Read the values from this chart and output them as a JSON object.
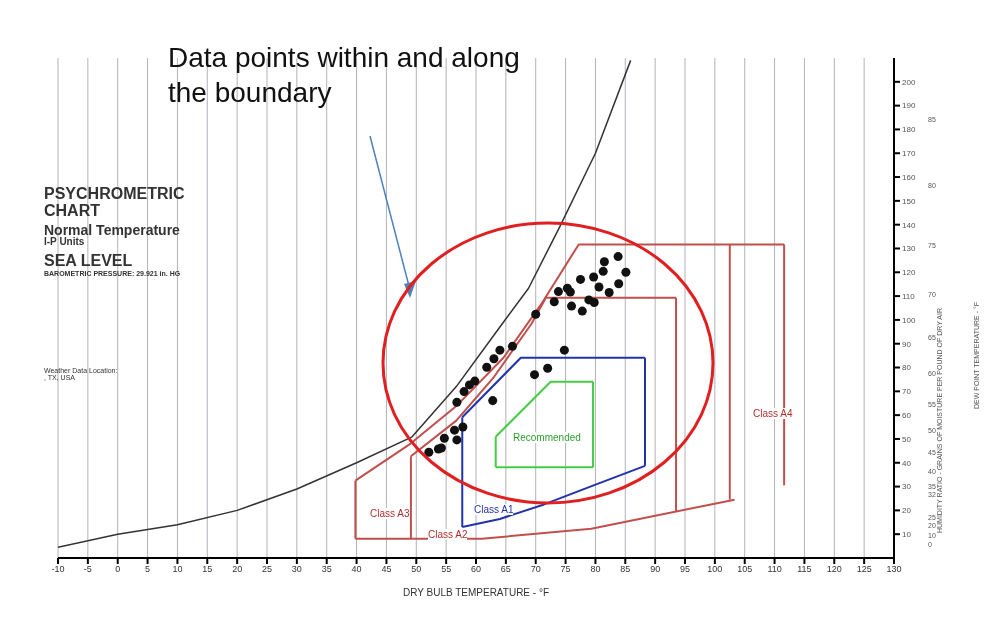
{
  "chart_data": {
    "type": "scatter",
    "title": "PSYCHROMETRIC CHART",
    "subtitle": "Normal Temperature",
    "xlabel": "DRY BULB TEMPERATURE - °F",
    "ylabel": "HUMIDITY RATIO - GRAINS OF MOISTURE PER POUND OF DRY AIR",
    "xlim": [
      -10,
      130
    ],
    "xticks": [
      -10,
      -5,
      0,
      5,
      10,
      15,
      20,
      25,
      30,
      35,
      40,
      45,
      50,
      55,
      60,
      65,
      70,
      75,
      80,
      85,
      90,
      95,
      100,
      105,
      110,
      115,
      120,
      125,
      130
    ],
    "ylim": [
      0,
      210
    ],
    "yticks": [
      10,
      20,
      30,
      40,
      50,
      60,
      70,
      80,
      90,
      100,
      110,
      120,
      130,
      140,
      150,
      160,
      170,
      180,
      190,
      200
    ],
    "grid": true,
    "marker": "none",
    "series": [
      {
        "type": "line",
        "color": "#333333",
        "x": [
          -10,
          0,
          10,
          20,
          30,
          40,
          49.3,
          56.7,
          64,
          68.8,
          74,
          80,
          85.9
        ],
        "values": [
          4.5,
          10,
          14,
          20,
          29,
          40,
          50.9,
          72,
          97,
          113.3,
          139,
          170,
          209
        ]
      },
      {
        "type": "line",
        "color": "#c0504d",
        "x": [
          39.8,
          39.8
        ],
        "values": [
          8.1,
          32.5
        ]
      },
      {
        "type": "line",
        "color": "#c0504d",
        "x": [
          39.8,
          48.8,
          56.7,
          64.6,
          70.9,
          77.2,
          102.5,
          111.6
        ],
        "values": [
          32.5,
          47.6,
          63.8,
          84.1,
          106.5,
          131.7,
          131.7,
          131.7
        ]
      },
      {
        "type": "line",
        "color": "#c0504d",
        "x": [
          39.8,
          61,
          79.3,
          103.3
        ],
        "values": [
          8.1,
          8.1,
          12.3,
          24.5
        ]
      },
      {
        "type": "line",
        "color": "#c0504d",
        "x": [
          102.5,
          102.5
        ],
        "values": [
          24.5,
          131.7
        ]
      },
      {
        "type": "line",
        "color": "#c0504d",
        "x": [
          111.6,
          111.6
        ],
        "values": [
          30.5,
          131.7
        ]
      },
      {
        "type": "line",
        "color": "#c0504d",
        "x": [
          49.1,
          49.1
        ],
        "values": [
          8.1,
          42.7
        ]
      },
      {
        "type": "line",
        "color": "#c0504d",
        "x": [
          49.1,
          56.7,
          63,
          69.3,
          71.7,
          93.5
        ],
        "values": [
          42.7,
          57.7,
          76,
          98.4,
          109.3,
          109.3
        ]
      },
      {
        "type": "line",
        "color": "#c0504d",
        "x": [
          93.5,
          93.5
        ],
        "values": [
          19.5,
          109.3
        ]
      },
      {
        "type": "line",
        "color": "#2233aa",
        "x": [
          57.7,
          57.7
        ],
        "values": [
          13,
          59.1
        ]
      },
      {
        "type": "line",
        "color": "#2233aa",
        "x": [
          57.7,
          64,
          71.4,
          79.8,
          88.3
        ],
        "values": [
          13,
          16.4,
          22.5,
          30.6,
          38.7
        ]
      },
      {
        "type": "line",
        "color": "#2233aa",
        "x": [
          88.3,
          88.3
        ],
        "values": [
          38.7,
          84.1
        ]
      },
      {
        "type": "line",
        "color": "#2233aa",
        "x": [
          57.7,
          67.5,
          88.3
        ],
        "values": [
          59.1,
          84.1,
          84.1
        ]
      },
      {
        "type": "line",
        "color": "#44cc44",
        "x": [
          63.3,
          79.6
        ],
        "values": [
          38.1,
          38.1
        ]
      },
      {
        "type": "line",
        "color": "#44cc44",
        "x": [
          79.6,
          79.6
        ],
        "values": [
          38.1,
          74
        ]
      },
      {
        "type": "line",
        "color": "#44cc44",
        "x": [
          63.3,
          72.5,
          79.6
        ],
        "values": [
          50.9,
          74,
          74
        ]
      },
      {
        "type": "line",
        "color": "#44cc44",
        "x": [
          63.3,
          63.3
        ],
        "values": [
          38.1,
          50.9
        ]
      },
      {
        "marker": "circle",
        "color": "#111111",
        "x": [
          83.8,
          81.5,
          81.3,
          85.1,
          79.7,
          77.5,
          83.9,
          80.6,
          82.3,
          75.3,
          75.8,
          73.8,
          78.9,
          79.8,
          73.1,
          76,
          77.8,
          70,
          74.8,
          66.1,
          64,
          63,
          61.8,
          72,
          69.8,
          59.8,
          58.9,
          58,
          56.8,
          62.8,
          57.8,
          56.4,
          54.7,
          56.8,
          54.2,
          52.1,
          53.7
        ],
        "values": [
          126.6,
          124.4,
          120.4,
          120,
          118,
          117,
          115.2,
          113.8,
          111.5,
          113.3,
          111.7,
          111.9,
          108.4,
          107.3,
          107.6,
          105.8,
          103.7,
          102.4,
          87.3,
          88.9,
          87.3,
          83.7,
          80.1,
          79.7,
          77,
          74.3,
          72.7,
          69.9,
          65.4,
          66.1,
          55,
          53.7,
          50.3,
          49.6,
          46.2,
          44.4,
          45.8
        ]
      }
    ],
    "annotations": [
      "I-P Units",
      "SEA LEVEL",
      "BAROMETRIC PRESSURE: 29.921 in. HG",
      "Weather Data Location:",
      ", TX, USA",
      "Data points within and along the boundary",
      "Class A3",
      "Class A2",
      "Class A1",
      "Class A4",
      "Recommended",
      "DEW POINT TEMPERATURE - °F",
      "85",
      "80",
      "75",
      "70",
      "65",
      "60",
      "55",
      "50",
      "45",
      "40",
      "35",
      "32",
      "25",
      "20",
      "10",
      "0"
    ]
  }
}
